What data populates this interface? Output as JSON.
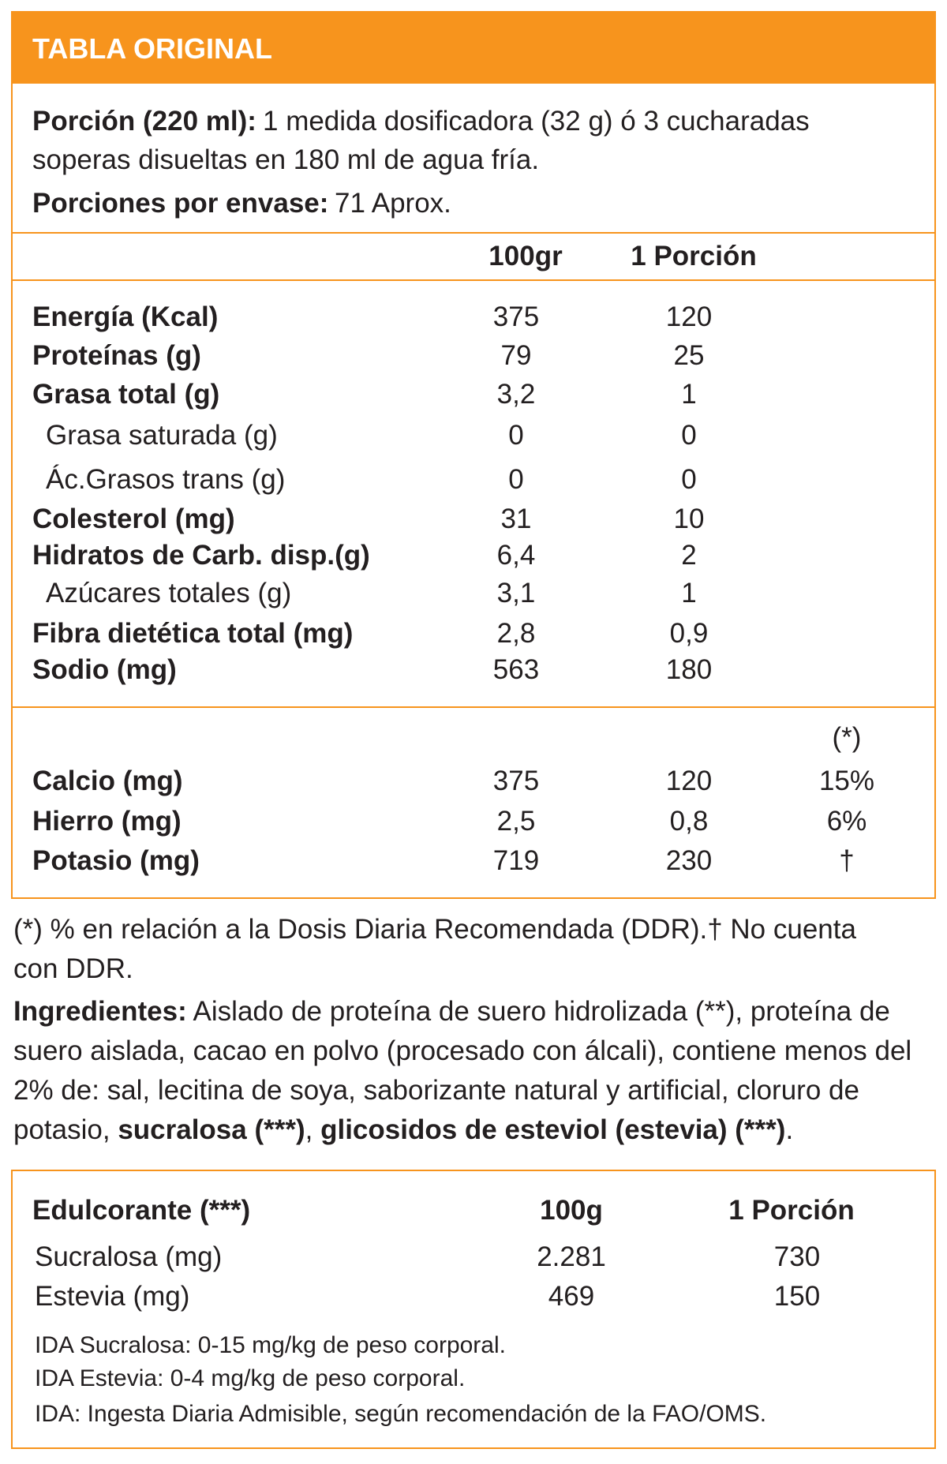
{
  "header": {
    "title": "TABLA ORIGINAL"
  },
  "serving": {
    "label": "Porción (220 ml):",
    "text_line1": "1 medida dosificadora (32 g) ó 3 cucharadas",
    "text_line2": "soperas disueltas en 180 ml de agua fría.",
    "per_pack_label": "Porciones por envase:",
    "per_pack_text": "71 Aprox."
  },
  "table": {
    "columns": [
      "100gr",
      "1 Porción"
    ],
    "rows": [
      {
        "label": "Energía (Kcal)",
        "per100": "375",
        "portion": "120"
      },
      {
        "label": "Proteínas (g)",
        "per100": "79",
        "portion": "25"
      },
      {
        "label": "Grasa total (g)",
        "per100": "3,2",
        "portion": "1"
      },
      {
        "label": "Grasa saturada (g)",
        "per100": "0",
        "portion": "0",
        "sub": true
      },
      {
        "label": "Ác.Grasos trans (g)",
        "per100": "0",
        "portion": "0",
        "sub": true
      },
      {
        "label": "Colesterol (mg)",
        "per100": "31",
        "portion": "10"
      },
      {
        "label": "Hidratos de Carb. disp.(g)",
        "per100": "6,4",
        "portion": "2"
      },
      {
        "label": "Azúcares totales (g)",
        "per100": "3,1",
        "portion": "1",
        "sub": true
      },
      {
        "label": "Fibra dietética total (mg)",
        "per100": "2,8",
        "portion": "0,9"
      },
      {
        "label": "Sodio (mg)",
        "per100": "563",
        "portion": "180"
      }
    ]
  },
  "minerals": {
    "ddr_header": "(*)",
    "rows": [
      {
        "label": "Calcio (mg)",
        "per100": "375",
        "portion": "120",
        "ddr": "15%"
      },
      {
        "label": "Hierro (mg)",
        "per100": "2,5",
        "portion": "0,8",
        "ddr": "6%"
      },
      {
        "label": "Potasio (mg)",
        "per100": "719",
        "portion": "230",
        "ddr": "†"
      }
    ]
  },
  "footnote": {
    "line1": "(*) % en relación a la Dosis Diaria Recomendada (DDR).† No cuenta",
    "line2": "con DDR."
  },
  "ingredients": {
    "segments": [
      {
        "text": "Ingredientes:",
        "bold": true
      },
      {
        "text": " Aislado de proteína de suero hidrolizada (**), proteína de suero aislada, cacao en polvo (procesado con álcali), contiene menos del 2% de: sal, lecitina de soya, saborizante natural y artificial, cloruro de potasio, ",
        "bold": false
      },
      {
        "text": "sucralosa (***)",
        "bold": true
      },
      {
        "text": ", ",
        "bold": false
      },
      {
        "text": "glicosidos de esteviol (estevia) (***)",
        "bold": true
      },
      {
        "text": ".",
        "bold": false
      }
    ]
  },
  "sweeteners": {
    "header": [
      "Edulcorante (***)",
      "100g",
      "1 Porción"
    ],
    "rows": [
      {
        "label": "Sucralosa (mg)",
        "per100": "2.281",
        "portion": "730"
      },
      {
        "label": "Estevia (mg)",
        "per100": "469",
        "portion": "150"
      }
    ],
    "notes": [
      "IDA Sucralosa: 0-15 mg/kg de peso corporal.",
      "IDA Estevia: 0-4 mg/kg de peso corporal.",
      "IDA: Ingesta Diaria Admisible, según recomendación de la FAO/OMS."
    ]
  }
}
